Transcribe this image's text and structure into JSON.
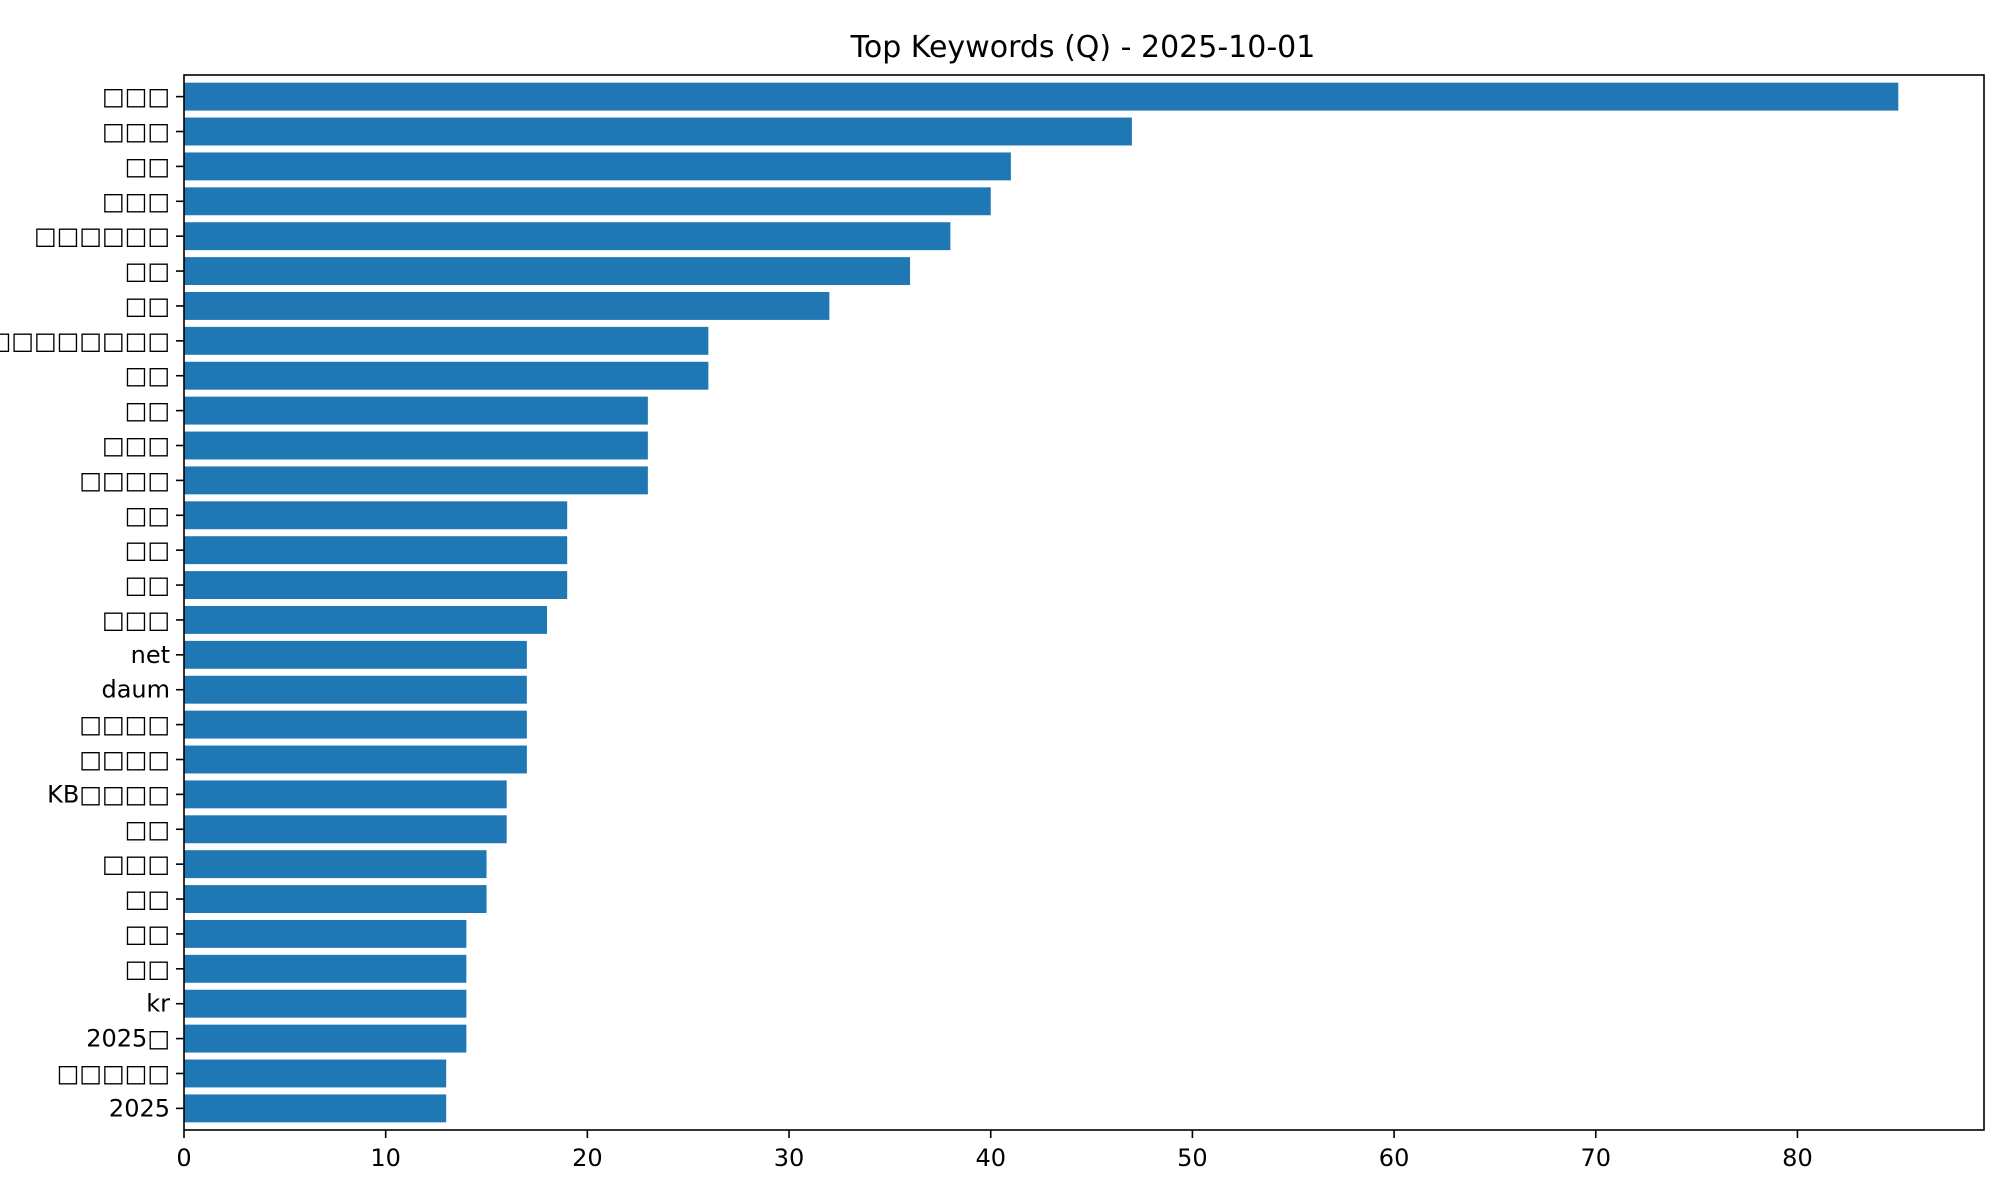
{
  "chart_data": {
    "type": "bar",
    "orientation": "horizontal",
    "title": "Top Keywords (Q) - 2025-10-01",
    "xlabel": "",
    "ylabel": "",
    "xlim": [
      0,
      89.25
    ],
    "x_ticks": [
      0,
      10,
      20,
      30,
      40,
      50,
      60,
      70,
      80
    ],
    "grid": false,
    "bar_color": "#1f77b4",
    "categories": [
      "□□□",
      "□□□",
      "□□",
      "□□□",
      "□□□□□□",
      "□□",
      "□□",
      "□□□□□□□□",
      "□□",
      "□□",
      "□□□",
      "□□□□",
      "□□",
      "□□",
      "□□",
      "□□□",
      "net",
      "daum",
      "□□□□",
      "□□□□",
      "KB□□□□",
      "□□",
      "□□□",
      "□□",
      "□□",
      "□□",
      "kr",
      "2025□",
      "□□□□□",
      "2025"
    ],
    "values": [
      85,
      47,
      41,
      40,
      38,
      36,
      32,
      26,
      26,
      23,
      23,
      23,
      19,
      19,
      19,
      18,
      17,
      17,
      17,
      17,
      16,
      16,
      15,
      15,
      14,
      14,
      14,
      14,
      13,
      13
    ]
  }
}
